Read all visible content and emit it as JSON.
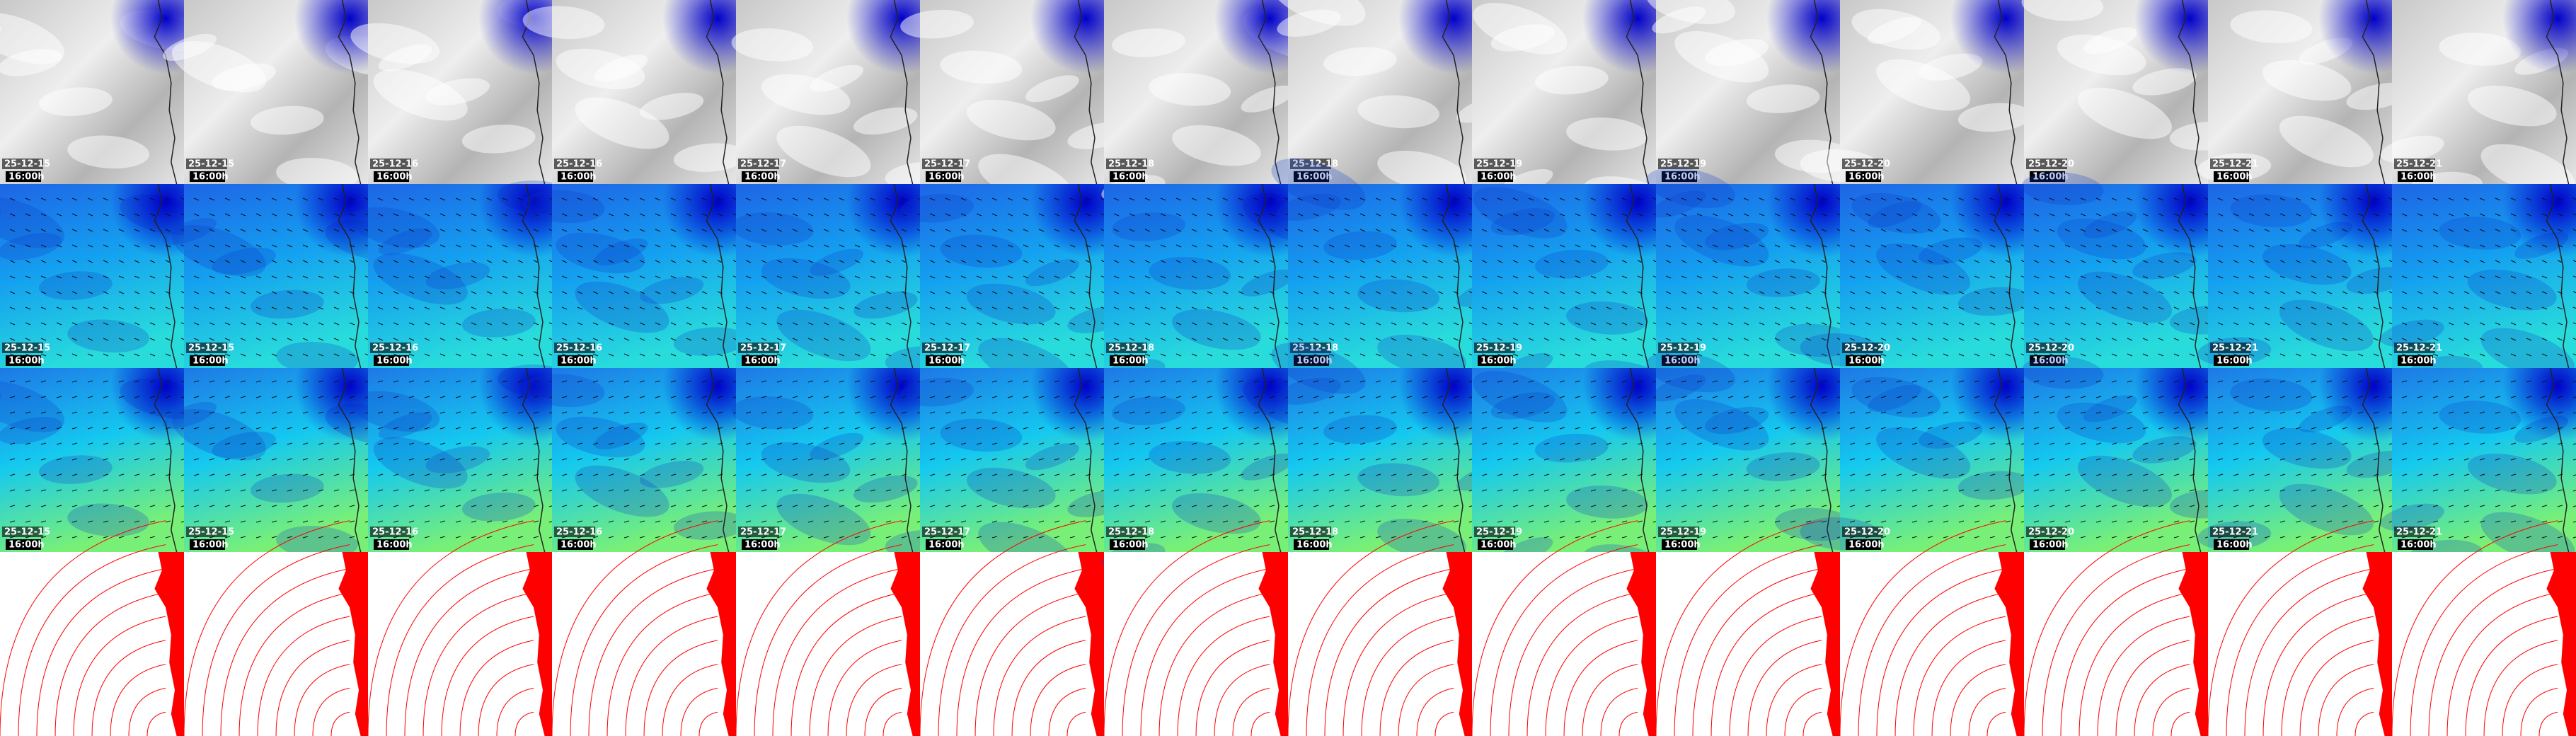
{
  "columns": [
    {
      "date": "25-12-15",
      "time": "16:00h"
    },
    {
      "date": "25-12-15",
      "time": "16:00h"
    },
    {
      "date": "25-12-16",
      "time": "16:00h"
    },
    {
      "date": "25-12-16",
      "time": "16:00h"
    },
    {
      "date": "25-12-17",
      "time": "16:00h"
    },
    {
      "date": "25-12-17",
      "time": "16:00h"
    },
    {
      "date": "25-12-18",
      "time": "16:00h"
    },
    {
      "date": "25-12-18",
      "time": "16:00h"
    },
    {
      "date": "25-12-19",
      "time": "16:00h"
    },
    {
      "date": "25-12-19",
      "time": "16:00h"
    },
    {
      "date": "25-12-20",
      "time": "16:00h"
    },
    {
      "date": "25-12-20",
      "time": "16:00h"
    },
    {
      "date": "25-12-21",
      "time": "16:00h"
    },
    {
      "date": "25-12-21",
      "time": "16:00h"
    }
  ]
}
